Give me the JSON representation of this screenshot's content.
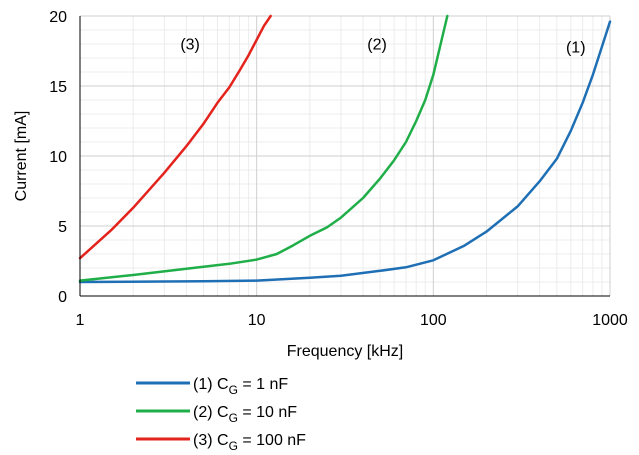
{
  "chart_data": {
    "type": "line",
    "xscale": "log",
    "xlim": [
      1,
      1000
    ],
    "ylim": [
      0,
      20
    ],
    "xlabel": "Frequency [kHz]",
    "ylabel": "Current [mA]",
    "xticks": [
      1,
      10,
      100,
      1000
    ],
    "xtick_labels": [
      "1",
      "10",
      "100",
      "1000"
    ],
    "yticks": [
      0,
      5,
      10,
      15,
      20
    ],
    "ytick_labels": [
      "0",
      "5",
      "10",
      "15",
      "20"
    ],
    "grid": true,
    "legend_position": "bottom",
    "series": [
      {
        "name": "(1) CG = 1 nF",
        "label_main": "(1) C",
        "label_sub": "G",
        "label_rest": " = 1 nF",
        "annotation": "(1)",
        "color": "#1f6fb5",
        "x": [
          1,
          5,
          10,
          20,
          30,
          50,
          70,
          100,
          150,
          200,
          300,
          400,
          500,
          600,
          700,
          800,
          900,
          1000
        ],
        "y": [
          1.0,
          1.05,
          1.1,
          1.3,
          1.45,
          1.8,
          2.05,
          2.55,
          3.6,
          4.6,
          6.4,
          8.2,
          9.8,
          11.8,
          13.8,
          15.8,
          17.8,
          19.6
        ]
      },
      {
        "name": "(2) CG = 10 nF",
        "label_main": "(2) C",
        "label_sub": "G",
        "label_rest": " = 10 nF",
        "annotation": "(2)",
        "color": "#1fae48",
        "x": [
          1,
          2,
          4,
          7,
          10,
          13,
          16,
          20,
          25,
          30,
          40,
          50,
          60,
          70,
          80,
          90,
          100,
          110,
          120
        ],
        "y": [
          1.1,
          1.5,
          1.95,
          2.3,
          2.6,
          3.0,
          3.6,
          4.3,
          4.9,
          5.6,
          7.0,
          8.4,
          9.7,
          11.0,
          12.5,
          14.0,
          15.8,
          18.0,
          20.0
        ]
      },
      {
        "name": "(3) CG = 100 nF",
        "label_main": "(3) C",
        "label_sub": "G",
        "label_rest": " = 100 nF",
        "annotation": "(3)",
        "color": "#e3231c",
        "x": [
          1,
          1.5,
          2,
          3,
          4,
          5,
          6,
          7,
          8,
          9,
          10,
          11,
          12
        ],
        "y": [
          2.7,
          4.7,
          6.3,
          8.8,
          10.7,
          12.3,
          13.8,
          14.9,
          16.1,
          17.2,
          18.3,
          19.3,
          20.0
        ]
      }
    ],
    "annotations": [
      {
        "text": "(3)",
        "x": 4.2,
        "y": 17.6
      },
      {
        "text": "(2)",
        "x": 48,
        "y": 17.6
      },
      {
        "text": "(1)",
        "x": 640,
        "y": 17.4
      }
    ]
  }
}
